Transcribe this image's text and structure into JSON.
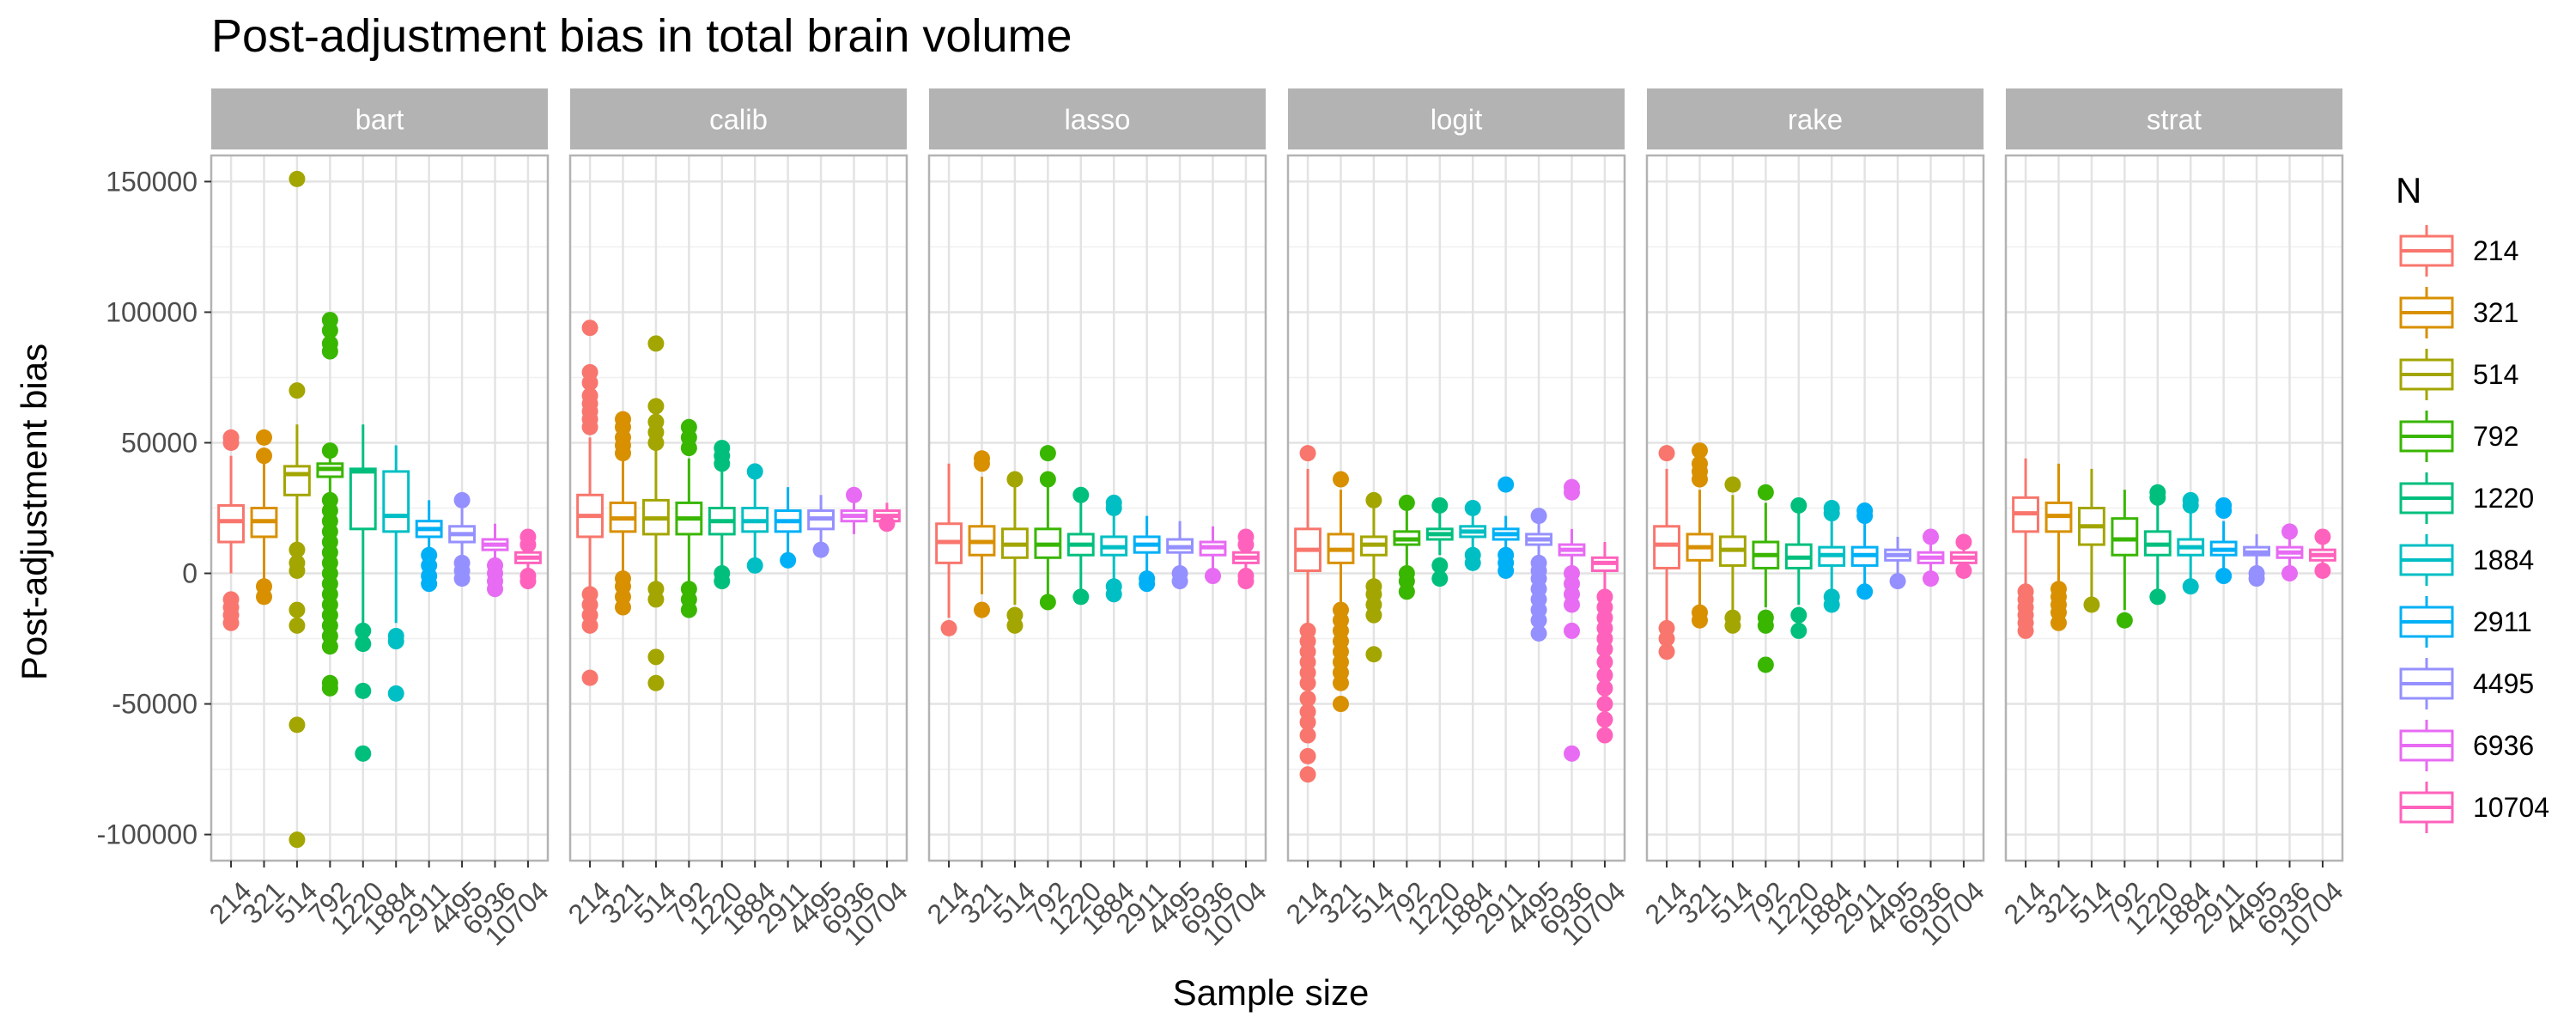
{
  "chart_data": {
    "type": "box",
    "title": "Post-adjustment bias in total brain volume",
    "xlabel": "Sample size",
    "ylabel": "Post-adjustment bias",
    "ylim": [
      -110000,
      160000
    ],
    "yticks": [
      150000,
      100000,
      50000,
      0,
      -50000,
      -100000
    ],
    "ytick_labels": [
      "150000",
      "100000",
      "50000",
      "0",
      "-50000",
      "-100000"
    ],
    "grid": true,
    "legend_position": "right",
    "legend_title": "N",
    "categories": [
      "214",
      "321",
      "514",
      "792",
      "1220",
      "1884",
      "2911",
      "4495",
      "6936",
      "10704"
    ],
    "colors": [
      "#F8766D",
      "#D89000",
      "#A3A500",
      "#39B600",
      "#00BF7D",
      "#00BFC4",
      "#00B0F6",
      "#9590FF",
      "#E76BF3",
      "#FF62BC"
    ],
    "facets": [
      {
        "name": "bart",
        "boxes": [
          {
            "n": "214",
            "q1": 12000,
            "median": 20000,
            "q3": 26000,
            "lo": 0,
            "hi": 45000,
            "outliers": [
              52000,
              50000,
              -10000,
              -13000,
              -16000,
              -19000
            ]
          },
          {
            "n": "321",
            "q1": 14000,
            "median": 20000,
            "q3": 25000,
            "lo": -3000,
            "hi": 42000,
            "outliers": [
              52000,
              45000,
              -5000,
              -9000
            ]
          },
          {
            "n": "514",
            "q1": 30000,
            "median": 38000,
            "q3": 41000,
            "lo": 12000,
            "hi": 57000,
            "outliers": [
              151000,
              70000,
              -102000,
              -58000,
              -20000,
              -14000,
              1000,
              4000,
              9000
            ]
          },
          {
            "n": "792",
            "q1": 37000,
            "median": 40000,
            "q3": 42000,
            "lo": 30000,
            "hi": 49000,
            "outliers": [
              97000,
              93000,
              88000,
              85000,
              47000,
              28000,
              24000,
              20000,
              16000,
              12000,
              8000,
              4000,
              0,
              -4000,
              -8000,
              -12000,
              -16000,
              -20000,
              -24000,
              -28000,
              -42000,
              -44000
            ]
          },
          {
            "n": "1220",
            "q1": 17000,
            "median": 39000,
            "q3": 40000,
            "lo": -19000,
            "hi": 57000,
            "outliers": [
              -22000,
              -27000,
              -45000,
              -69000
            ]
          },
          {
            "n": "1884",
            "q1": 16000,
            "median": 22000,
            "q3": 39000,
            "lo": -19000,
            "hi": 49000,
            "outliers": [
              -24000,
              -26000,
              -46000
            ]
          },
          {
            "n": "2911",
            "q1": 14000,
            "median": 17000,
            "q3": 20000,
            "lo": 8000,
            "hi": 28000,
            "outliers": [
              7000,
              3000,
              -1000,
              -4000
            ]
          },
          {
            "n": "4495",
            "q1": 12000,
            "median": 15000,
            "q3": 18000,
            "lo": 5000,
            "hi": 26000,
            "outliers": [
              28000,
              4000,
              1000,
              -2000
            ]
          },
          {
            "n": "6936",
            "q1": 9000,
            "median": 11000,
            "q3": 13000,
            "lo": 4000,
            "hi": 19000,
            "outliers": [
              3000,
              0,
              -3000,
              -6000
            ]
          },
          {
            "n": "10704",
            "q1": 4000,
            "median": 6000,
            "q3": 8000,
            "lo": -1000,
            "hi": 13000,
            "outliers": [
              14000,
              11000,
              -1000,
              -3000
            ]
          }
        ]
      },
      {
        "name": "calib",
        "boxes": [
          {
            "n": "214",
            "q1": 14000,
            "median": 22000,
            "q3": 30000,
            "lo": -6000,
            "hi": 52000,
            "outliers": [
              94000,
              77000,
              73000,
              68000,
              65000,
              62000,
              59000,
              56000,
              -8000,
              -12000,
              -16000,
              -20000,
              -40000
            ]
          },
          {
            "n": "321",
            "q1": 16000,
            "median": 21000,
            "q3": 27000,
            "lo": 1000,
            "hi": 43000,
            "outliers": [
              59000,
              56000,
              52000,
              49000,
              46000,
              -2000,
              -5000,
              -9000,
              -13000
            ]
          },
          {
            "n": "514",
            "q1": 15000,
            "median": 21000,
            "q3": 28000,
            "lo": -4000,
            "hi": 47000,
            "outliers": [
              88000,
              64000,
              58000,
              54000,
              50000,
              -6000,
              -10000,
              -32000,
              -42000
            ]
          },
          {
            "n": "792",
            "q1": 15000,
            "median": 21000,
            "q3": 27000,
            "lo": -3000,
            "hi": 44000,
            "outliers": [
              56000,
              52000,
              48000,
              -6000,
              -10000,
              -14000
            ]
          },
          {
            "n": "1220",
            "q1": 15000,
            "median": 20000,
            "q3": 25000,
            "lo": 3000,
            "hi": 40000,
            "outliers": [
              48000,
              45000,
              42000,
              0,
              -3000
            ]
          },
          {
            "n": "1884",
            "q1": 16000,
            "median": 20000,
            "q3": 25000,
            "lo": 5000,
            "hi": 37000,
            "outliers": [
              39000,
              3000
            ]
          },
          {
            "n": "2911",
            "q1": 16000,
            "median": 20000,
            "q3": 24000,
            "lo": 8000,
            "hi": 33000,
            "outliers": [
              5000
            ]
          },
          {
            "n": "4495",
            "q1": 17000,
            "median": 21000,
            "q3": 24000,
            "lo": 11000,
            "hi": 30000,
            "outliers": [
              9000
            ]
          },
          {
            "n": "6936",
            "q1": 20000,
            "median": 22000,
            "q3": 24000,
            "lo": 15000,
            "hi": 29000,
            "outliers": [
              30000
            ]
          },
          {
            "n": "10704",
            "q1": 20000,
            "median": 22000,
            "q3": 24000,
            "lo": 17000,
            "hi": 27000,
            "outliers": [
              19000
            ]
          }
        ]
      },
      {
        "name": "lasso",
        "boxes": [
          {
            "n": "214",
            "q1": 4000,
            "median": 12000,
            "q3": 19000,
            "lo": -17000,
            "hi": 42000,
            "outliers": [
              -21000
            ]
          },
          {
            "n": "321",
            "q1": 7000,
            "median": 12000,
            "q3": 18000,
            "lo": -8000,
            "hi": 37000,
            "outliers": [
              44000,
              42000,
              -14000
            ]
          },
          {
            "n": "514",
            "q1": 6000,
            "median": 11000,
            "q3": 17000,
            "lo": -12000,
            "hi": 33000,
            "outliers": [
              36000,
              -16000,
              -20000
            ]
          },
          {
            "n": "792",
            "q1": 6000,
            "median": 11000,
            "q3": 17000,
            "lo": -8000,
            "hi": 33000,
            "outliers": [
              46000,
              36000,
              -11000
            ]
          },
          {
            "n": "1220",
            "q1": 7000,
            "median": 11000,
            "q3": 15000,
            "lo": -6000,
            "hi": 27000,
            "outliers": [
              30000,
              -9000
            ]
          },
          {
            "n": "1884",
            "q1": 7000,
            "median": 10000,
            "q3": 14000,
            "lo": -3000,
            "hi": 24000,
            "outliers": [
              27000,
              25000,
              -5000,
              -8000
            ]
          },
          {
            "n": "2911",
            "q1": 8000,
            "median": 11000,
            "q3": 14000,
            "lo": 0,
            "hi": 22000,
            "outliers": [
              -2000,
              -4000
            ]
          },
          {
            "n": "4495",
            "q1": 8000,
            "median": 10000,
            "q3": 13000,
            "lo": 2000,
            "hi": 20000,
            "outliers": [
              0,
              -3000
            ]
          },
          {
            "n": "6936",
            "q1": 7000,
            "median": 10000,
            "q3": 12000,
            "lo": 1000,
            "hi": 18000,
            "outliers": [
              -1000
            ]
          },
          {
            "n": "10704",
            "q1": 4000,
            "median": 6000,
            "q3": 8000,
            "lo": -1000,
            "hi": 13000,
            "outliers": [
              14000,
              11000,
              -1000,
              -3000
            ]
          }
        ]
      },
      {
        "name": "logit",
        "boxes": [
          {
            "n": "214",
            "q1": 1000,
            "median": 9000,
            "q3": 17000,
            "lo": -20000,
            "hi": 40000,
            "outliers": [
              46000,
              -22000,
              -26000,
              -30000,
              -34000,
              -38000,
              -42000,
              -48000,
              -53000,
              -57000,
              -62000,
              -70000,
              -77000
            ]
          },
          {
            "n": "321",
            "q1": 4000,
            "median": 9000,
            "q3": 15000,
            "lo": -11000,
            "hi": 32000,
            "outliers": [
              36000,
              -14000,
              -18000,
              -22000,
              -26000,
              -30000,
              -34000,
              -38000,
              -42000,
              -50000
            ]
          },
          {
            "n": "514",
            "q1": 7000,
            "median": 11000,
            "q3": 14000,
            "lo": -3000,
            "hi": 25000,
            "outliers": [
              28000,
              -5000,
              -8000,
              -12000,
              -16000,
              -31000
            ]
          },
          {
            "n": "792",
            "q1": 11000,
            "median": 13000,
            "q3": 16000,
            "lo": 3000,
            "hi": 24000,
            "outliers": [
              27000,
              0,
              -3000,
              -7000
            ]
          },
          {
            "n": "1220",
            "q1": 13000,
            "median": 15000,
            "q3": 17000,
            "lo": 7000,
            "hi": 23000,
            "outliers": [
              26000,
              3000,
              -2000
            ]
          },
          {
            "n": "1884",
            "q1": 14000,
            "median": 16000,
            "q3": 18000,
            "lo": 9000,
            "hi": 23000,
            "outliers": [
              25000,
              7000,
              4000
            ]
          },
          {
            "n": "2911",
            "q1": 13000,
            "median": 15000,
            "q3": 17000,
            "lo": 8000,
            "hi": 22000,
            "outliers": [
              34000,
              7000,
              4000,
              1000
            ]
          },
          {
            "n": "4495",
            "q1": 11000,
            "median": 13000,
            "q3": 15000,
            "lo": 6000,
            "hi": 20000,
            "outliers": [
              22000,
              4000,
              1000,
              -2000,
              -6000,
              -10000,
              -14000,
              -18000,
              -23000
            ]
          },
          {
            "n": "6936",
            "q1": 7000,
            "median": 9000,
            "q3": 11000,
            "lo": 2000,
            "hi": 17000,
            "outliers": [
              33000,
              31000,
              0,
              -4000,
              -8000,
              -12000,
              -22000,
              -69000
            ]
          },
          {
            "n": "10704",
            "q1": 1000,
            "median": 4000,
            "q3": 6000,
            "lo": -6000,
            "hi": 12000,
            "outliers": [
              -9000,
              -13000,
              -17000,
              -21000,
              -25000,
              -29000,
              -34000,
              -39000,
              -44000,
              -50000,
              -56000,
              -62000
            ]
          }
        ]
      },
      {
        "name": "rake",
        "boxes": [
          {
            "n": "214",
            "q1": 2000,
            "median": 11000,
            "q3": 18000,
            "lo": -18000,
            "hi": 40000,
            "outliers": [
              46000,
              -21000,
              -25000,
              -30000
            ]
          },
          {
            "n": "321",
            "q1": 5000,
            "median": 10000,
            "q3": 15000,
            "lo": -12000,
            "hi": 32000,
            "outliers": [
              47000,
              42000,
              39000,
              36000,
              -15000,
              -18000
            ]
          },
          {
            "n": "514",
            "q1": 3000,
            "median": 9000,
            "q3": 14000,
            "lo": -14000,
            "hi": 30000,
            "outliers": [
              34000,
              -17000,
              -20000
            ]
          },
          {
            "n": "792",
            "q1": 2000,
            "median": 7000,
            "q3": 12000,
            "lo": -13000,
            "hi": 27000,
            "outliers": [
              31000,
              -17000,
              -20000,
              -35000
            ]
          },
          {
            "n": "1220",
            "q1": 2000,
            "median": 6000,
            "q3": 11000,
            "lo": -12000,
            "hi": 24000,
            "outliers": [
              26000,
              -16000,
              -22000
            ]
          },
          {
            "n": "1884",
            "q1": 3000,
            "median": 7000,
            "q3": 10000,
            "lo": -6000,
            "hi": 21000,
            "outliers": [
              25000,
              23000,
              -9000,
              -12000
            ]
          },
          {
            "n": "2911",
            "q1": 3000,
            "median": 7000,
            "q3": 10000,
            "lo": -4000,
            "hi": 20000,
            "outliers": [
              24000,
              22000,
              -7000
            ]
          },
          {
            "n": "4495",
            "q1": 5000,
            "median": 7000,
            "q3": 9000,
            "lo": -1000,
            "hi": 14000,
            "outliers": [
              -3000
            ]
          },
          {
            "n": "6936",
            "q1": 4000,
            "median": 6000,
            "q3": 8000,
            "lo": 0,
            "hi": 12000,
            "outliers": [
              14000,
              -2000
            ]
          },
          {
            "n": "10704",
            "q1": 4000,
            "median": 6000,
            "q3": 8000,
            "lo": 1000,
            "hi": 11000,
            "outliers": [
              12000,
              1000
            ]
          }
        ]
      },
      {
        "name": "strat",
        "boxes": [
          {
            "n": "214",
            "q1": 16000,
            "median": 23000,
            "q3": 29000,
            "lo": -5000,
            "hi": 44000,
            "outliers": [
              -7000,
              -10000,
              -13000,
              -16000,
              -19000,
              -22000
            ]
          },
          {
            "n": "321",
            "q1": 16000,
            "median": 22000,
            "q3": 27000,
            "lo": -4000,
            "hi": 42000,
            "outliers": [
              -6000,
              -9000,
              -12000,
              -15000,
              -19000
            ]
          },
          {
            "n": "514",
            "q1": 11000,
            "median": 18000,
            "q3": 25000,
            "lo": -9000,
            "hi": 40000,
            "outliers": [
              -12000
            ]
          },
          {
            "n": "792",
            "q1": 7000,
            "median": 13000,
            "q3": 21000,
            "lo": -14000,
            "hi": 32000,
            "outliers": [
              -18000
            ]
          },
          {
            "n": "1220",
            "q1": 7000,
            "median": 11000,
            "q3": 16000,
            "lo": -6000,
            "hi": 27000,
            "outliers": [
              31000,
              29000,
              -9000
            ]
          },
          {
            "n": "1884",
            "q1": 7000,
            "median": 10000,
            "q3": 13000,
            "lo": -2000,
            "hi": 23000,
            "outliers": [
              28000,
              26000,
              -5000
            ]
          },
          {
            "n": "2911",
            "q1": 7000,
            "median": 9000,
            "q3": 12000,
            "lo": 1000,
            "hi": 20000,
            "outliers": [
              26000,
              24000,
              -1000
            ]
          },
          {
            "n": "4495",
            "q1": 7000,
            "median": 8000,
            "q3": 10000,
            "lo": 2000,
            "hi": 15000,
            "outliers": [
              0,
              -2000
            ]
          },
          {
            "n": "6936",
            "q1": 6000,
            "median": 8000,
            "q3": 10000,
            "lo": 2000,
            "hi": 14000,
            "outliers": [
              16000,
              0
            ]
          },
          {
            "n": "10704",
            "q1": 5000,
            "median": 7000,
            "q3": 9000,
            "lo": 2000,
            "hi": 12000,
            "outliers": [
              14000,
              1000
            ]
          }
        ]
      }
    ]
  }
}
